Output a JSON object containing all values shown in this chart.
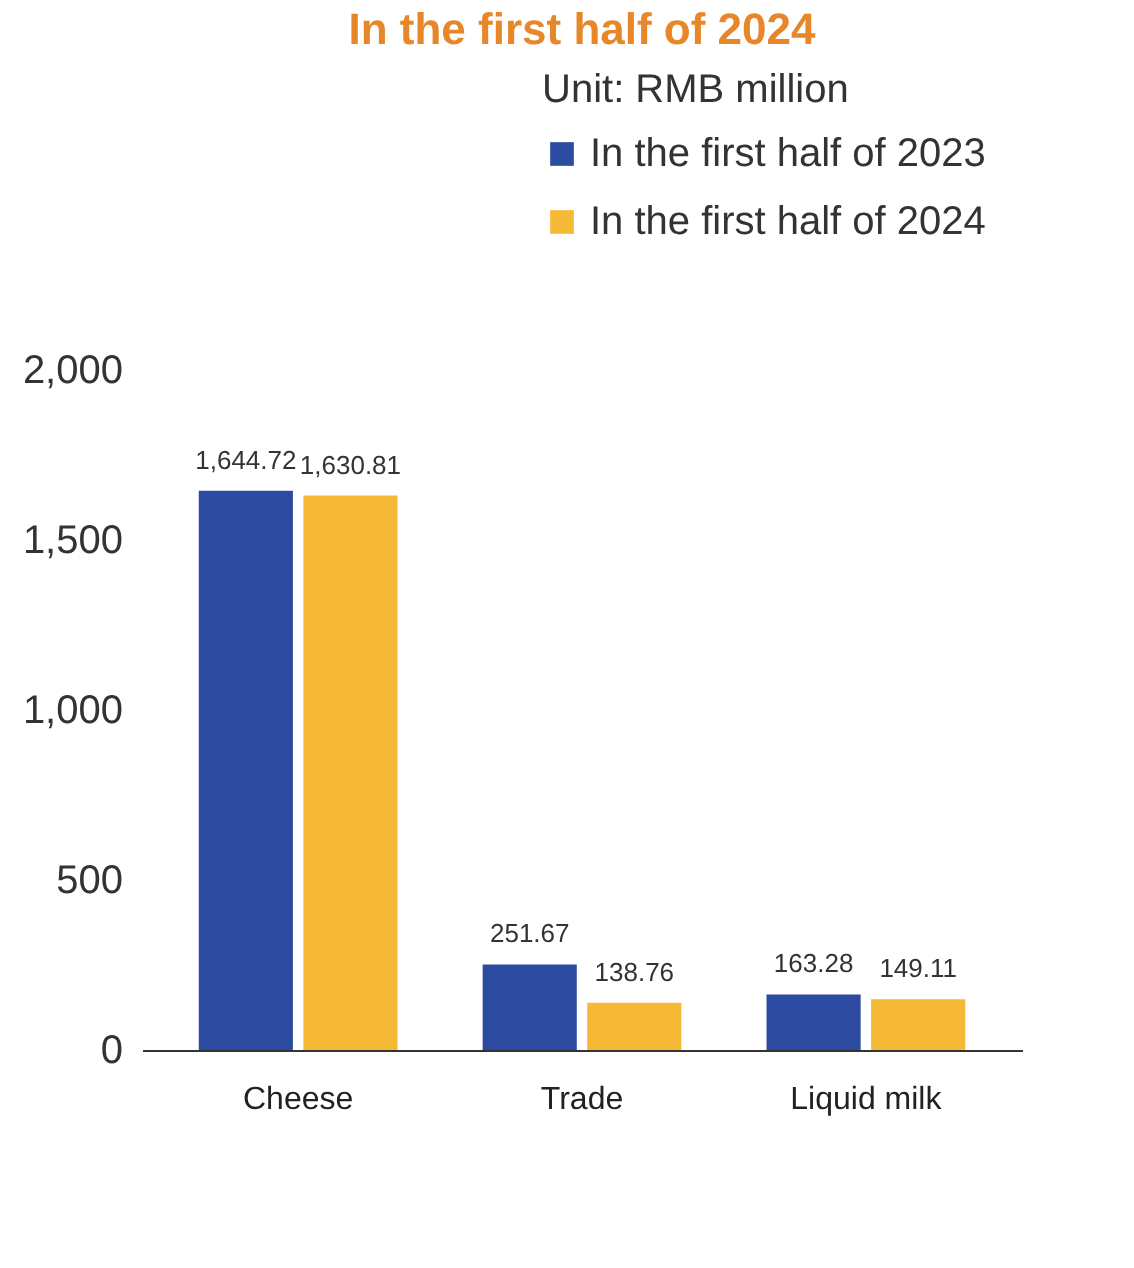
{
  "chart_data": {
    "type": "bar",
    "title": "In the first half of 2024",
    "legend_title": "Unit: RMB million",
    "categories": [
      "Cheese",
      "Trade",
      "Liquid milk"
    ],
    "series": [
      {
        "name": "In the first half of 2023",
        "color": "#2b4aa0",
        "values": [
          1644.72,
          251.67,
          163.28
        ],
        "value_labels": [
          "1,644.72",
          "251.67",
          "163.28"
        ]
      },
      {
        "name": "In the first half of 2024",
        "color": "#f5b935",
        "values": [
          1630.81,
          138.76,
          149.11
        ],
        "value_labels": [
          "1,630.81",
          "138.76",
          "149.11"
        ]
      }
    ],
    "ylim": [
      0,
      2000
    ],
    "yticks": [
      0,
      {
        "value": 500,
        "label": "500"
      },
      {
        "value": 1000,
        "label": "1,000"
      },
      {
        "value": 1500,
        "label": "1,500"
      },
      {
        "value": 2000,
        "label": "2,000"
      }
    ],
    "grid": false,
    "legend": "top right"
  }
}
